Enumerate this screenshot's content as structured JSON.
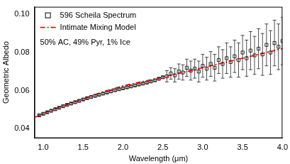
{
  "chart_data": {
    "type": "scatter",
    "xlabel": "Wavelength (μm)",
    "ylabel": "Geometric Albedo",
    "annotation": "50% AC, 49% Pyr, 1% Ice",
    "legend": "upper left",
    "grid": false,
    "xlim": [
      0.89,
      4.0
    ],
    "xticks": [
      {
        "value": 1.0,
        "label": "1.0"
      },
      {
        "value": 1.5,
        "label": "1.5"
      },
      {
        "value": 2.0,
        "label": "2.0"
      },
      {
        "value": 2.5,
        "label": "2.5"
      },
      {
        "value": 3.0,
        "label": "3.0"
      },
      {
        "value": 3.5,
        "label": "3.5"
      },
      {
        "value": 4.0,
        "label": "4.0"
      }
    ],
    "ylim": [
      0.035,
      0.104
    ],
    "yticks": [
      0.04,
      0.06,
      0.08,
      {
        "value": 0.1,
        "label": "0.10"
      }
    ],
    "series": [
      {
        "name": "596 Scheila Spectrum",
        "color": "#000000",
        "marker": "square",
        "x": [
          0.95,
          1.0,
          1.05,
          1.1,
          1.15,
          1.2,
          1.25,
          1.3,
          1.35,
          1.4,
          1.45,
          1.5,
          1.55,
          1.6,
          1.65,
          1.7,
          1.75,
          1.8,
          1.85,
          1.9,
          1.95,
          2.0,
          2.05,
          2.1,
          2.15,
          2.2,
          2.25,
          2.3,
          2.35,
          2.4,
          2.45,
          2.5,
          2.55,
          2.6,
          2.65,
          2.7,
          2.75,
          2.8,
          2.85,
          2.9,
          2.95,
          3.0,
          3.05,
          3.1,
          3.15,
          3.2,
          3.25,
          3.3,
          3.35,
          3.4,
          3.45,
          3.5,
          3.55,
          3.6,
          3.65,
          3.7,
          3.75,
          3.8,
          3.85,
          3.9,
          3.95,
          4.0
        ],
        "values": [
          0.047,
          0.0478,
          0.0486,
          0.0494,
          0.0502,
          0.051,
          0.0518,
          0.0525,
          0.0532,
          0.0539,
          0.0546,
          0.0553,
          0.056,
          0.0566,
          0.0572,
          0.0578,
          0.0584,
          0.059,
          0.0596,
          0.0602,
          0.0607,
          0.0612,
          0.0617,
          0.0622,
          0.0627,
          0.0632,
          0.0637,
          0.0642,
          0.0648,
          0.0654,
          0.0662,
          0.067,
          0.0675,
          0.069,
          0.068,
          0.07,
          0.0695,
          0.072,
          0.0705,
          0.0715,
          0.07,
          0.073,
          0.0715,
          0.074,
          0.072,
          0.076,
          0.074,
          0.077,
          0.075,
          0.078,
          0.076,
          0.08,
          0.077,
          0.081,
          0.0785,
          0.082,
          0.079,
          0.084,
          0.08,
          0.085,
          0.083,
          0.086
        ],
        "error": [
          0.0005,
          0.0005,
          0.0005,
          0.0005,
          0.0005,
          0.0005,
          0.0005,
          0.0005,
          0.0005,
          0.0005,
          0.0005,
          0.0005,
          0.0005,
          0.0005,
          0.0005,
          0.0005,
          0.0005,
          0.0005,
          0.0005,
          0.0005,
          0.0005,
          0.0005,
          0.0005,
          0.0005,
          0.0005,
          0.0005,
          0.0005,
          0.0005,
          0.0005,
          0.0005,
          0.0005,
          0.0005,
          0.003,
          0.003,
          0.0035,
          0.004,
          0.004,
          0.0045,
          0.005,
          0.005,
          0.0055,
          0.006,
          0.006,
          0.0065,
          0.007,
          0.007,
          0.0075,
          0.008,
          0.008,
          0.0085,
          0.009,
          0.009,
          0.0095,
          0.01,
          0.01,
          0.0105,
          0.011,
          0.011,
          0.0115,
          0.012,
          0.012,
          0.0125
        ]
      },
      {
        "name": "Intimate Mixing Model",
        "color": "#ff0000",
        "type": "line",
        "line_style": "dashdot",
        "x": [
          0.9,
          1.0,
          1.25,
          1.5,
          1.75,
          2.0,
          2.25,
          2.5,
          2.75,
          3.0,
          3.25,
          3.5,
          3.75,
          4.0
        ],
        "values": [
          0.046,
          0.048,
          0.052,
          0.0556,
          0.0594,
          0.0625,
          0.0648,
          0.067,
          0.0695,
          0.072,
          0.0745,
          0.077,
          0.0795,
          0.082
        ]
      }
    ]
  }
}
